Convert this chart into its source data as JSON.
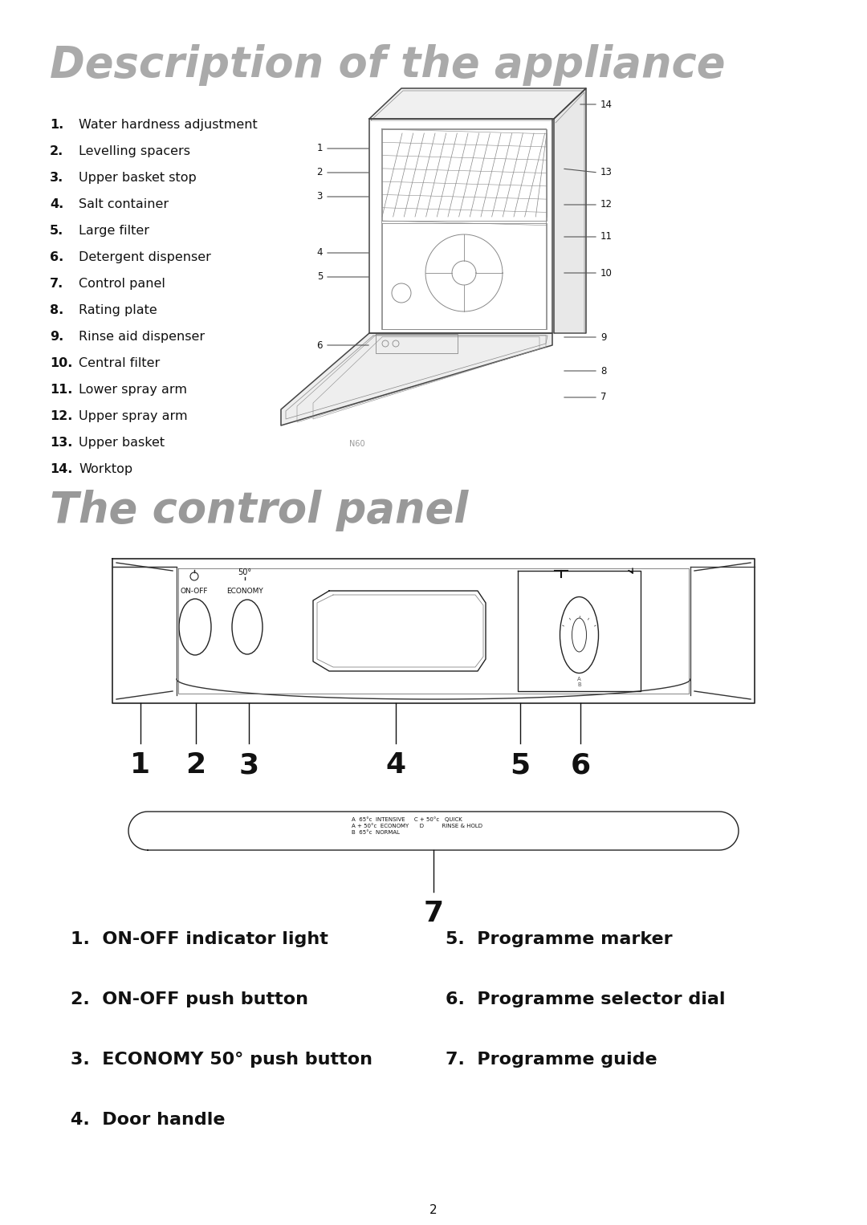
{
  "bg_color": "#ffffff",
  "title1": "Description of the appliance",
  "title2": "The control panel",
  "title1_color": "#aaaaaa",
  "title2_color": "#999999",
  "section1_items": [
    {
      "num": "1.",
      "text": "Water hardness adjustment"
    },
    {
      "num": "2.",
      "text": "Levelling spacers"
    },
    {
      "num": "3.",
      "text": "Upper basket stop"
    },
    {
      "num": "4.",
      "text": "Salt container"
    },
    {
      "num": "5.",
      "text": "Large filter"
    },
    {
      "num": "6.",
      "text": "Detergent dispenser"
    },
    {
      "num": "7.",
      "text": "Control panel"
    },
    {
      "num": "8.",
      "text": "Rating plate"
    },
    {
      "num": "9.",
      "text": "Rinse aid dispenser"
    },
    {
      "num": "10.",
      "text": "Central filter"
    },
    {
      "num": "11.",
      "text": "Lower spray arm"
    },
    {
      "num": "12.",
      "text": "Upper spray arm"
    },
    {
      "num": "13.",
      "text": "Upper basket"
    },
    {
      "num": "14.",
      "text": "Worktop"
    }
  ],
  "section2_left_items": [
    {
      "num": "1.",
      "text": "ON-OFF indicator light"
    },
    {
      "num": "2.",
      "text": "ON-OFF push button"
    },
    {
      "num": "3.",
      "text": "ECONOMY 50° push button"
    },
    {
      "num": "4.",
      "text": "Door handle"
    }
  ],
  "section2_right_items": [
    {
      "num": "5.",
      "text": "Programme marker"
    },
    {
      "num": "6.",
      "text": "Programme selector dial"
    },
    {
      "num": "7.",
      "text": "Programme guide"
    }
  ],
  "page_number": "2"
}
